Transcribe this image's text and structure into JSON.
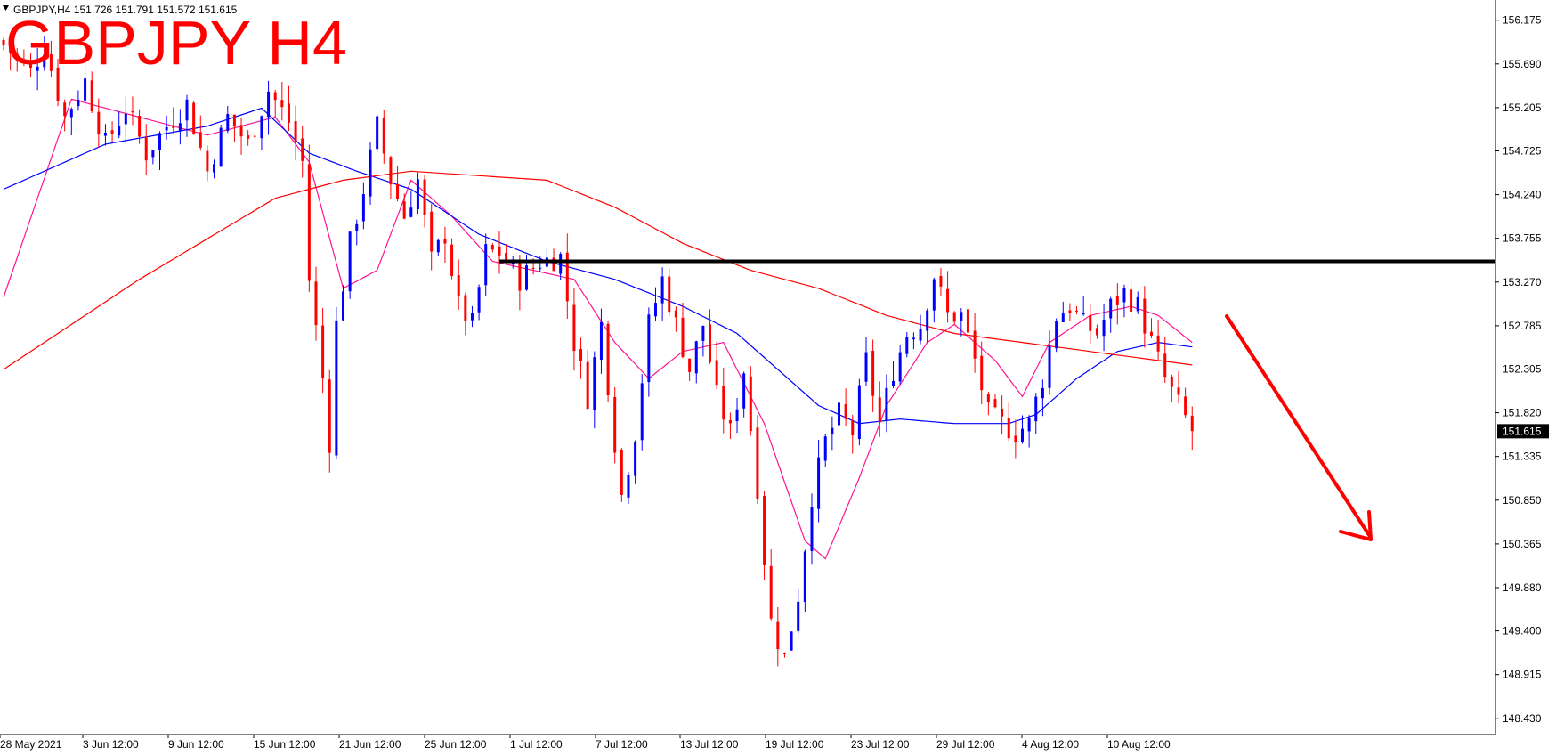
{
  "header": {
    "symbol_line": "GBPJPY,H4  151.726 151.791 151.572 151.615",
    "title": "GBPJPY H4"
  },
  "colors": {
    "bull": "#0000ff",
    "bear": "#ff0000",
    "ma_fast": "#ff1493",
    "ma_mid": "#0000ff",
    "ma_slow": "#ff0000",
    "level": "#000000",
    "arrow": "#ff0000"
  },
  "icons": {
    "menu": "triangle-down-icon"
  },
  "chart_data": {
    "type": "candlestick",
    "ylim": [
      148.26,
      156.34
    ],
    "y_ticks": [
      "156.175",
      "155.690",
      "155.205",
      "154.725",
      "154.240",
      "153.755",
      "153.270",
      "152.785",
      "152.305",
      "151.820",
      "151.335",
      "150.850",
      "150.365",
      "149.880",
      "149.400",
      "148.915",
      "148.430"
    ],
    "x_ticks": [
      "28 May 2021",
      "3 Jun 12:00",
      "9 Jun 12:00",
      "15 Jun 12:00",
      "21 Jun 12:00",
      "25 Jun 12:00",
      "1 Jul 12:00",
      "7 Jul 12:00",
      "13 Jul 12:00",
      "19 Jul 12:00",
      "23 Jul 12:00",
      "29 Jul 12:00",
      "4 Aug 12:00",
      "10 Aug 12:00"
    ],
    "current_price": "151.615",
    "horizontal_level": 153.5,
    "price_path": [
      [
        0,
        155.9
      ],
      [
        4,
        155.6
      ],
      [
        6,
        155.9
      ],
      [
        9,
        155.1
      ],
      [
        12,
        155.5
      ],
      [
        15,
        154.8
      ],
      [
        18,
        155.2
      ],
      [
        21,
        154.7
      ],
      [
        24,
        155.0
      ],
      [
        27,
        155.25
      ],
      [
        30,
        154.5
      ],
      [
        33,
        155.1
      ],
      [
        36,
        154.8
      ],
      [
        39,
        155.4
      ],
      [
        42,
        155.05
      ],
      [
        44,
        154.6
      ],
      [
        45,
        153.3
      ],
      [
        47,
        152.2
      ],
      [
        48,
        151.5
      ],
      [
        49,
        152.8
      ],
      [
        51,
        153.7
      ],
      [
        53,
        154.3
      ],
      [
        55,
        155.0
      ],
      [
        57,
        154.4
      ],
      [
        59,
        154.0
      ],
      [
        61,
        154.4
      ],
      [
        63,
        153.5
      ],
      [
        65,
        153.8
      ],
      [
        67,
        153.0
      ],
      [
        69,
        152.8
      ],
      [
        71,
        153.6
      ],
      [
        73,
        153.6
      ],
      [
        76,
        153.3
      ],
      [
        79,
        153.5
      ],
      [
        82,
        153.55
      ],
      [
        84,
        152.6
      ],
      [
        86,
        152.0
      ],
      [
        88,
        152.8
      ],
      [
        90,
        151.5
      ],
      [
        91,
        150.9
      ],
      [
        93,
        151.6
      ],
      [
        95,
        152.8
      ],
      [
        97,
        153.3
      ],
      [
        99,
        152.8
      ],
      [
        101,
        152.3
      ],
      [
        103,
        152.8
      ],
      [
        105,
        152.0
      ],
      [
        107,
        151.6
      ],
      [
        109,
        152.3
      ],
      [
        111,
        151.0
      ],
      [
        112,
        150.2
      ],
      [
        113,
        149.5
      ],
      [
        115,
        149.1
      ],
      [
        117,
        149.8
      ],
      [
        119,
        150.9
      ],
      [
        121,
        151.5
      ],
      [
        123,
        151.8
      ],
      [
        125,
        151.6
      ],
      [
        127,
        152.4
      ],
      [
        129,
        151.7
      ],
      [
        131,
        152.3
      ],
      [
        133,
        152.7
      ],
      [
        135,
        152.8
      ],
      [
        137,
        153.35
      ],
      [
        139,
        152.9
      ],
      [
        141,
        152.9
      ],
      [
        143,
        152.4
      ],
      [
        145,
        151.8
      ],
      [
        147,
        151.7
      ],
      [
        149,
        151.6
      ],
      [
        151,
        151.7
      ],
      [
        153,
        152.2
      ],
      [
        155,
        152.9
      ],
      [
        157,
        153.0
      ],
      [
        159,
        152.8
      ],
      [
        161,
        152.7
      ],
      [
        163,
        153.0
      ],
      [
        165,
        153.15
      ],
      [
        167,
        153.0
      ],
      [
        169,
        152.6
      ],
      [
        171,
        152.2
      ],
      [
        173,
        151.9
      ],
      [
        175,
        151.62
      ]
    ],
    "series": [
      {
        "values": [
          [
            0,
            153.1
          ],
          [
            10,
            155.3
          ],
          [
            20,
            155.1
          ],
          [
            30,
            154.9
          ],
          [
            40,
            155.1
          ],
          [
            45,
            154.6
          ],
          [
            50,
            153.2
          ],
          [
            55,
            153.4
          ],
          [
            60,
            154.4
          ],
          [
            66,
            154.0
          ],
          [
            72,
            153.5
          ],
          [
            78,
            153.4
          ],
          [
            84,
            153.3
          ],
          [
            90,
            152.6
          ],
          [
            95,
            152.2
          ],
          [
            100,
            152.5
          ],
          [
            106,
            152.6
          ],
          [
            112,
            151.7
          ],
          [
            118,
            150.4
          ],
          [
            121,
            150.2
          ],
          [
            126,
            151.1
          ],
          [
            130,
            151.9
          ],
          [
            136,
            152.6
          ],
          [
            140,
            152.8
          ],
          [
            146,
            152.4
          ],
          [
            150,
            152.0
          ],
          [
            154,
            152.6
          ],
          [
            160,
            152.9
          ],
          [
            166,
            153.0
          ],
          [
            170,
            152.9
          ],
          [
            175,
            152.6
          ]
        ]
      },
      {
        "values": [
          [
            0,
            154.3
          ],
          [
            15,
            154.8
          ],
          [
            30,
            155.0
          ],
          [
            38,
            155.2
          ],
          [
            45,
            154.7
          ],
          [
            52,
            154.5
          ],
          [
            60,
            154.3
          ],
          [
            70,
            153.8
          ],
          [
            80,
            153.5
          ],
          [
            90,
            153.3
          ],
          [
            100,
            153.0
          ],
          [
            108,
            152.7
          ],
          [
            114,
            152.3
          ],
          [
            120,
            151.9
          ],
          [
            126,
            151.7
          ],
          [
            132,
            151.75
          ],
          [
            140,
            151.7
          ],
          [
            148,
            151.7
          ],
          [
            152,
            151.8
          ],
          [
            158,
            152.2
          ],
          [
            164,
            152.5
          ],
          [
            170,
            152.6
          ],
          [
            175,
            152.55
          ]
        ]
      },
      {
        "values": [
          [
            0,
            152.3
          ],
          [
            20,
            153.3
          ],
          [
            40,
            154.2
          ],
          [
            50,
            154.4
          ],
          [
            60,
            154.5
          ],
          [
            70,
            154.45
          ],
          [
            80,
            154.4
          ],
          [
            90,
            154.1
          ],
          [
            100,
            153.7
          ],
          [
            110,
            153.4
          ],
          [
            120,
            153.2
          ],
          [
            130,
            152.9
          ],
          [
            140,
            152.7
          ],
          [
            150,
            152.6
          ],
          [
            160,
            152.5
          ],
          [
            175,
            152.35
          ]
        ]
      }
    ]
  }
}
